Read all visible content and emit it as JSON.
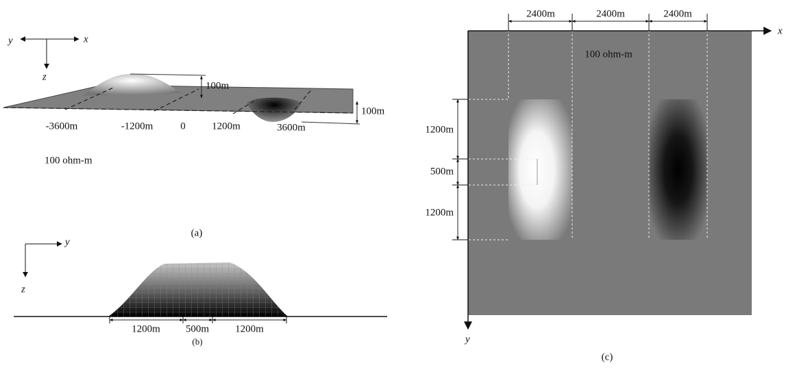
{
  "panel_a": {
    "axis_y": "y",
    "axis_x": "x",
    "axis_z": "z",
    "height_label": "100m",
    "depth_label": "100m",
    "positions": [
      "-3600m",
      "-1200m",
      "0",
      "1200m",
      "3600m"
    ],
    "resistivity": "100 ohm-m",
    "caption": "(a)"
  },
  "panel_b": {
    "axis_y": "y",
    "axis_z": "z",
    "widths": [
      "1200m",
      "500m",
      "1200m"
    ],
    "caption": "(b)"
  },
  "panel_c": {
    "widths": [
      "2400m",
      "2400m",
      "2400m"
    ],
    "axis_x": "x",
    "axis_y": "y",
    "resistivity": "100 ohm-m",
    "heights": [
      "1200m",
      "500m",
      "1200m"
    ],
    "caption": "(c)"
  }
}
